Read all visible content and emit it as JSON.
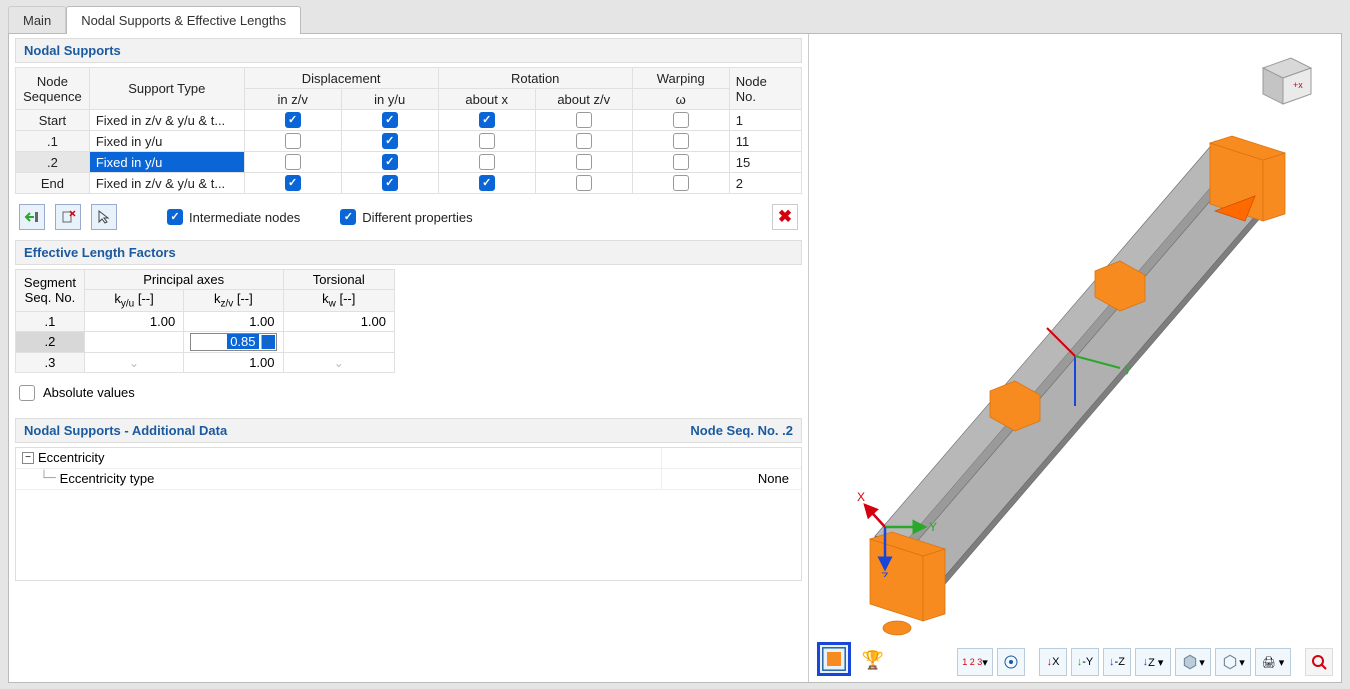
{
  "tabs": {
    "main": "Main",
    "nodal": "Nodal Supports & Effective Lengths"
  },
  "sections": {
    "supports_title": "Nodal Supports",
    "factors_title": "Effective Length Factors",
    "addl_title": "Nodal Supports - Additional Data",
    "addl_right": "Node Seq. No. .2"
  },
  "support_headers": {
    "node_seq1": "Node",
    "node_seq2": "Sequence",
    "support_type": "Support Type",
    "displacement": "Displacement",
    "disp_zv": "in z/v",
    "disp_yu": "in y/u",
    "rotation": "Rotation",
    "rot_x": "about x",
    "rot_zv": "about z/v",
    "warping": "Warping",
    "warp_w": "ω",
    "node_no1": "Node",
    "node_no2": "No."
  },
  "support_rows": [
    {
      "seq": "Start",
      "type": "Fixed in z/v & y/u & t...",
      "dzv": true,
      "dyu": true,
      "rx": true,
      "rzv": false,
      "w": false,
      "no": "1",
      "sel": false
    },
    {
      "seq": ".1",
      "type": "Fixed in y/u",
      "dzv": false,
      "dyu": true,
      "rx": false,
      "rzv": false,
      "w": false,
      "no": "11",
      "sel": false
    },
    {
      "seq": ".2",
      "type": "Fixed in y/u",
      "dzv": false,
      "dyu": true,
      "rx": false,
      "rzv": false,
      "w": false,
      "no": "15",
      "sel": true
    },
    {
      "seq": "End",
      "type": "Fixed in z/v & y/u & t...",
      "dzv": true,
      "dyu": true,
      "rx": true,
      "rzv": false,
      "w": false,
      "no": "2",
      "sel": false
    }
  ],
  "toolbar": {
    "intermediate": "Intermediate nodes",
    "different": "Different properties"
  },
  "factor_headers": {
    "seg1": "Segment",
    "seg2": "Seq. No.",
    "principal": "Principal axes",
    "kyu": "ky/u [--]",
    "kzv": "kz/v [--]",
    "torsional": "Torsional",
    "kw": "kw [--]"
  },
  "factor_rows": [
    {
      "seq": ".1",
      "kyu": "1.00",
      "kzv": "1.00",
      "kw": "1.00",
      "sel": false,
      "kzv_edit": false,
      "arrows": false
    },
    {
      "seq": ".2",
      "kyu": "",
      "kzv": "0.85",
      "kw": "",
      "sel": true,
      "kzv_edit": true,
      "arrows": false
    },
    {
      "seq": ".3",
      "kyu": "",
      "kzv": "1.00",
      "kw": "",
      "sel": false,
      "kzv_edit": false,
      "arrows": true
    }
  ],
  "absolute": "Absolute values",
  "addl": {
    "eccentricity": "Eccentricity",
    "ecc_type": "Eccentricity type",
    "ecc_val": "None"
  },
  "axes": {
    "x": "X",
    "y": "Y",
    "z": "Z"
  },
  "colors": {
    "accent": "#0a66d6",
    "heading": "#1b5a9e",
    "beam_side": "#8e8e8e",
    "beam_top": "#b8b8b8",
    "beam_edge": "#6a6a6a",
    "support": "#f78b1f",
    "support_dark": "#d97410",
    "x_axis": "#d4000e",
    "y_axis": "#2aa82a",
    "z_axis": "#1846d8",
    "callout": "#2a3fe0"
  }
}
